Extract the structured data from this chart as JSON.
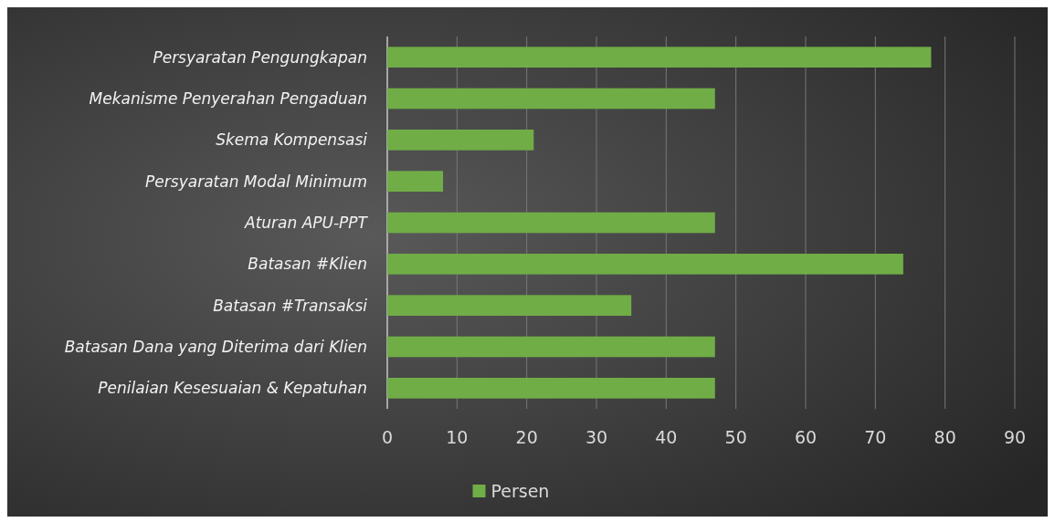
{
  "chart_data": {
    "type": "bar",
    "orientation": "horizontal",
    "categories": [
      "Persyaratan Pengungkapan",
      "Mekanisme Penyerahan Pengaduan",
      "Skema Kompensasi",
      "Persyaratan Modal Minimum",
      "Aturan APU-PPT",
      "Batasan #Klien",
      "Batasan #Transaksi",
      "Batasan Dana yang Diterima dari Klien",
      "Penilaian Kesesuaian & Kepatuhan "
    ],
    "series": [
      {
        "name": "Persen",
        "color": "#70ad47",
        "values": [
          78,
          47,
          21,
          8,
          47,
          74,
          35,
          47,
          47
        ]
      }
    ],
    "xlim": [
      0,
      90
    ],
    "xticks": [
      0,
      10,
      20,
      30,
      40,
      50,
      60,
      70,
      80,
      90
    ],
    "grid": "x",
    "legend": "bottom"
  }
}
